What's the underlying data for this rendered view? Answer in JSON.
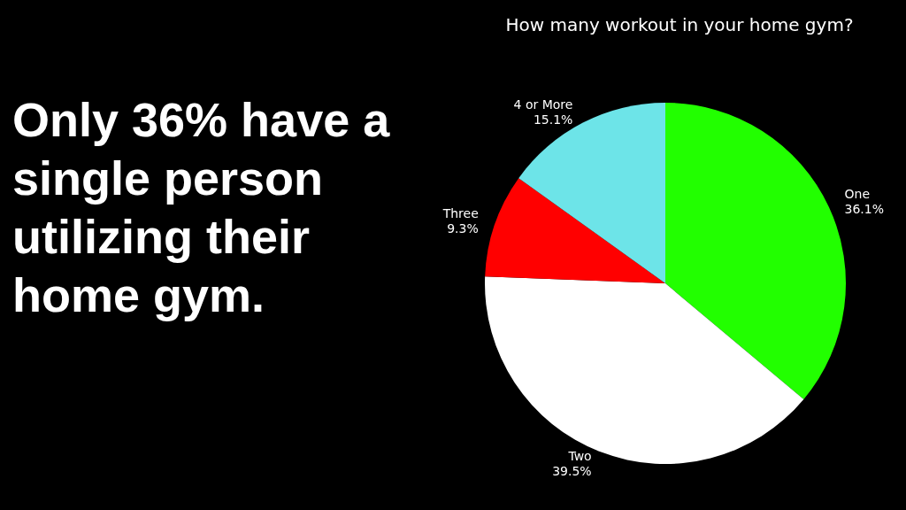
{
  "chart_data": {
    "type": "pie",
    "title": "How many workout in your home gym?",
    "categories": [
      "One",
      "Two",
      "Three",
      "4 or More"
    ],
    "values": [
      36.1,
      39.5,
      9.3,
      15.1
    ],
    "value_labels": [
      "36.1%",
      "39.5%",
      "9.3%",
      "15.1%"
    ],
    "colors": [
      "#22ff00",
      "#ffffff",
      "#ff0000",
      "#6de4e8"
    ],
    "annotations": [
      "Only 36% have a single person utilizing their home gym."
    ]
  }
}
